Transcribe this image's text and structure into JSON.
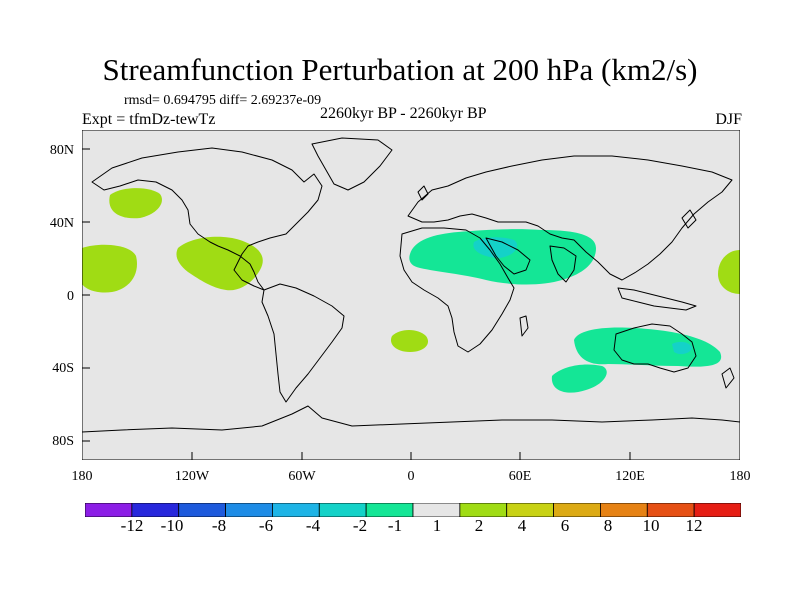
{
  "title": "Streamfunction Perturbation at 200 hPa (km2/s)",
  "stats": "rmsd= 0.694795 diff= 2.69237e-09",
  "expt": "Expt = tfmDz-tewTz",
  "period": "2260kyr BP - 2260kyr BP",
  "season": "DJF",
  "lat_labels": [
    "80N",
    "40N",
    "0",
    "40S",
    "80S"
  ],
  "lon_labels": [
    "180",
    "120W",
    "60W",
    "0",
    "60E",
    "120E",
    "180"
  ],
  "colorbar": {
    "labels": [
      "-12",
      "-10",
      "-8",
      "-6",
      "-4",
      "-2",
      "-1",
      "1",
      "2",
      "4",
      "6",
      "8",
      "10",
      "12"
    ],
    "colors": [
      "#8c1ee6",
      "#2828dc",
      "#1e5adc",
      "#1e8ce6",
      "#1eb4e6",
      "#14d2c8",
      "#14e696",
      "#e6e6e6",
      "#a0dc14",
      "#c8d214",
      "#dcaa14",
      "#e68214",
      "#e65014",
      "#e61e14"
    ]
  },
  "colors": {
    "background": "#e6e6e6",
    "positive": "#a0dc14",
    "negative": "#14e696",
    "negative_deep": "#14d2c8",
    "coast": "#000000"
  }
}
